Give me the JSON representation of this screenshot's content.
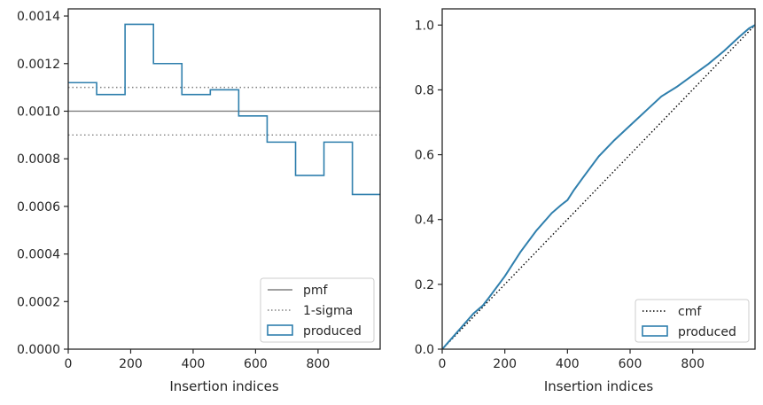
{
  "chart_data": [
    {
      "type": "step",
      "xlabel": "Insertion indices",
      "ylabel": "",
      "xlim": [
        0,
        999
      ],
      "ylim": [
        0,
        0.00143
      ],
      "xticks": [
        0,
        200,
        400,
        600,
        800
      ],
      "xtick_labels": [
        "0",
        "200",
        "400",
        "600",
        "800"
      ],
      "yticks": [
        0,
        0.0002,
        0.0004,
        0.0006,
        0.0008,
        0.001,
        0.0012,
        0.0014
      ],
      "ytick_labels": [
        "0.0000",
        "0.0002",
        "0.0004",
        "0.0006",
        "0.0008",
        "0.0010",
        "0.0012",
        "0.0014"
      ],
      "grid": false,
      "legend_position": "bottom-right",
      "hlines": [
        {
          "name": "pmf",
          "y": 0.001,
          "style": "solid",
          "color": "#808080"
        },
        {
          "name": "1-sigma",
          "y": 0.0011,
          "style": "dotted",
          "color": "#808080"
        },
        {
          "name": "",
          "y": 0.0009,
          "style": "dotted",
          "color": "#808080"
        }
      ],
      "series": [
        {
          "name": "produced",
          "color": "#2f7fad",
          "bin_edges": [
            0,
            91,
            182,
            273,
            364,
            455,
            546,
            637,
            728,
            819,
            910,
            1001
          ],
          "values": [
            0.00112,
            0.00107,
            0.001365,
            0.0012,
            0.00107,
            0.00109,
            0.00098,
            0.00087,
            0.00073,
            0.00087,
            0.00065
          ]
        }
      ],
      "legend": [
        {
          "label": "pmf",
          "kind": "line-solid",
          "color": "#808080"
        },
        {
          "label": "1-sigma",
          "kind": "line-dotted",
          "color": "#808080"
        },
        {
          "label": "produced",
          "kind": "patch",
          "color": "#2f7fad"
        }
      ]
    },
    {
      "type": "line",
      "xlabel": "Insertion indices",
      "ylabel": "",
      "xlim": [
        0,
        999
      ],
      "ylim": [
        0,
        1.05
      ],
      "xticks": [
        0,
        200,
        400,
        600,
        800
      ],
      "xtick_labels": [
        "0",
        "200",
        "400",
        "600",
        "800"
      ],
      "yticks": [
        0,
        0.2,
        0.4,
        0.6,
        0.8,
        1.0
      ],
      "ytick_labels": [
        "0.0",
        "0.2",
        "0.4",
        "0.6",
        "0.8",
        "1.0"
      ],
      "grid": false,
      "legend_position": "bottom-right",
      "series": [
        {
          "name": "cmf",
          "style": "dotted",
          "color": "#000000",
          "x": [
            0,
            999
          ],
          "y": [
            0,
            1.0
          ]
        },
        {
          "name": "produced",
          "style": "solid",
          "color": "#2f7fad",
          "x": [
            0,
            50,
            100,
            130,
            150,
            200,
            250,
            300,
            350,
            380,
            400,
            420,
            450,
            500,
            550,
            600,
            650,
            700,
            750,
            800,
            850,
            900,
            950,
            980,
            999
          ],
          "y": [
            0,
            0.055,
            0.11,
            0.135,
            0.16,
            0.225,
            0.3,
            0.365,
            0.42,
            0.445,
            0.46,
            0.49,
            0.53,
            0.595,
            0.645,
            0.69,
            0.735,
            0.78,
            0.81,
            0.845,
            0.88,
            0.92,
            0.965,
            0.99,
            1.0
          ]
        }
      ],
      "legend": [
        {
          "label": "cmf",
          "kind": "line-dotted",
          "color": "#000000"
        },
        {
          "label": "produced",
          "kind": "patch",
          "color": "#2f7fad"
        }
      ]
    }
  ]
}
